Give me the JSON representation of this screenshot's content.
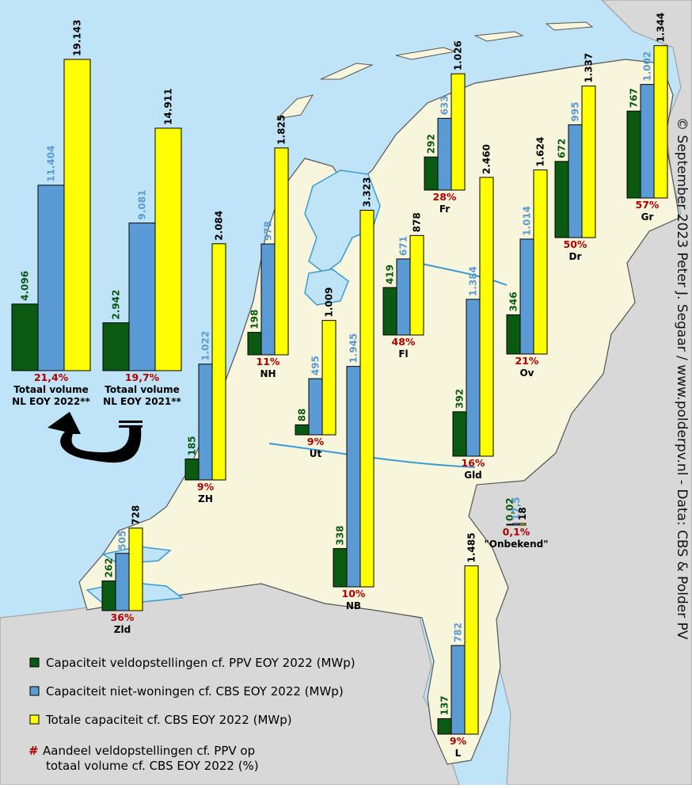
{
  "colors": {
    "sea": "#bfe4f7",
    "land": "#f7f5dc",
    "foreign": "#d8d8d8",
    "border": "#555555",
    "water": "#3a9bd4",
    "veld": "#0b5a12",
    "nietwoningen": "#5b9bd5",
    "totaal": "#ffff00",
    "pct": "#b00000"
  },
  "chart_data": {
    "type": "bar",
    "series": [
      {
        "key": "veld",
        "name": "Capaciteit veldopstellingen cf. PPV EOY 2022 (MWp)"
      },
      {
        "key": "nietwoningen",
        "name": "Capaciteit niet-woningen cf. CBS EOY 2022 (MWp)"
      },
      {
        "key": "totaal",
        "name": "Totale capaciteit cf. CBS EOY 2022 (MWp)"
      }
    ],
    "share_label": "Aandeel veldopstellingen cf. PPV op totaal volume cf. CBS EOY 2022 (%)",
    "groups": [
      {
        "id": "nl2022",
        "name_lines": [
          "Totaal volume",
          "NL EOY 2022**"
        ],
        "values": [
          4096,
          11404,
          19143
        ],
        "labels": [
          "4.096",
          "11.404",
          "19.143"
        ],
        "pct": "21,4%"
      },
      {
        "id": "nl2021",
        "name_lines": [
          "Totaal volume",
          "NL EOY 2021**"
        ],
        "values": [
          2942,
          9081,
          14911
        ],
        "labels": [
          "2.942",
          "9.081",
          "14.911"
        ],
        "pct": "19,7%"
      },
      {
        "id": "NH",
        "name_lines": [
          "NH"
        ],
        "values": [
          198,
          978,
          1825
        ],
        "labels": [
          "198",
          "978",
          "1.825"
        ],
        "pct": "11%"
      },
      {
        "id": "ZH",
        "name_lines": [
          "ZH"
        ],
        "values": [
          185,
          1022,
          2084
        ],
        "labels": [
          "185",
          "1.022",
          "2.084"
        ],
        "pct": "9%"
      },
      {
        "id": "Ut",
        "name_lines": [
          "Ut"
        ],
        "values": [
          88,
          495,
          1009
        ],
        "labels": [
          "88",
          "495",
          "1.009"
        ],
        "pct": "9%"
      },
      {
        "id": "NB",
        "name_lines": [
          "NB"
        ],
        "values": [
          338,
          1945,
          3323
        ],
        "labels": [
          "338",
          "1.945",
          "3.323"
        ],
        "pct": "10%"
      },
      {
        "id": "Zld",
        "name_lines": [
          "Zld"
        ],
        "values": [
          262,
          505,
          728
        ],
        "labels": [
          "262",
          "505",
          "728"
        ],
        "pct": "36%"
      },
      {
        "id": "Fl",
        "name_lines": [
          "Fl"
        ],
        "values": [
          419,
          671,
          878
        ],
        "labels": [
          "419",
          "671",
          "878"
        ],
        "pct": "48%"
      },
      {
        "id": "Fr",
        "name_lines": [
          "Fr"
        ],
        "values": [
          292,
          633,
          1026
        ],
        "labels": [
          "292",
          "633",
          "1.026"
        ],
        "pct": "28%"
      },
      {
        "id": "Gld",
        "name_lines": [
          "Gld"
        ],
        "values": [
          392,
          1384,
          2460
        ],
        "labels": [
          "392",
          "1.384",
          "2.460"
        ],
        "pct": "16%"
      },
      {
        "id": "Ov",
        "name_lines": [
          "Ov"
        ],
        "values": [
          346,
          1014,
          1624
        ],
        "labels": [
          "346",
          "1.014",
          "1.624"
        ],
        "pct": "21%"
      },
      {
        "id": "Dr",
        "name_lines": [
          "Dr"
        ],
        "values": [
          672,
          995,
          1337
        ],
        "labels": [
          "672",
          "995",
          "1.337"
        ],
        "pct": "50%"
      },
      {
        "id": "Gr",
        "name_lines": [
          "Gr"
        ],
        "values": [
          767,
          1002,
          1344
        ],
        "labels": [
          "767",
          "1.002",
          "1.344"
        ],
        "pct": "57%"
      },
      {
        "id": "L",
        "name_lines": [
          "L"
        ],
        "values": [
          137,
          782,
          1485
        ],
        "labels": [
          "137",
          "782",
          "1.485"
        ],
        "pct": "9%"
      },
      {
        "id": "onbekend",
        "name_lines": [
          "\"Onbekend\""
        ],
        "values": [
          0.02,
          17.5,
          18
        ],
        "labels": [
          "0,02",
          "17,5",
          "18"
        ],
        "pct": "0,1%"
      }
    ]
  },
  "legend": {
    "items": [
      {
        "key": "veld",
        "label": "Capaciteit veldopstellingen cf. PPV EOY 2022 (MWp)"
      },
      {
        "key": "nietwoningen",
        "label": "Capaciteit niet-woningen cf. CBS EOY 2022 (MWp)"
      },
      {
        "key": "totaal",
        "label": "Totale capaciteit cf. CBS EOY 2022 (MWp)"
      }
    ],
    "share_marker": "#",
    "share_lines": [
      "Aandeel veldopstellingen cf. PPV op",
      "totaal volume cf. CBS EOY 2022 (%)"
    ]
  },
  "credit": "© September 2023 Peter J. Segaar / www.polderpv.nl - Data: CBS & Polder PV"
}
